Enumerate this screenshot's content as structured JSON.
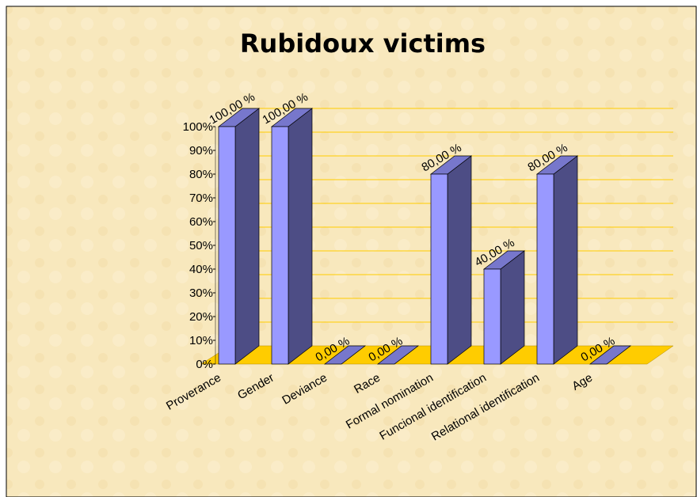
{
  "chart_data": {
    "type": "bar3d",
    "title": "Rubidoux victims",
    "categories": [
      "Proverance",
      "Gender",
      "Deviance",
      "Race",
      "Formal nomination",
      "Funcional identification",
      "Relational identification",
      "Age"
    ],
    "values": [
      100,
      100,
      0,
      0,
      80,
      40,
      80,
      0
    ],
    "value_labels": [
      "100,00 %",
      "100,00 %",
      "0,00 %",
      "0,00 %",
      "80,00 %",
      "40,00 %",
      "80,00 %",
      "0,00 %"
    ],
    "color": "#9999ff",
    "side_color": "#4d4d85",
    "top_color": "#7777cc",
    "floor_color": "#ffcc00",
    "ylim": [
      0,
      100
    ],
    "yticks": [
      {
        "value": 0,
        "label": "0%"
      },
      {
        "value": 10,
        "label": "10%"
      },
      {
        "value": 20,
        "label": "20%"
      },
      {
        "value": 30,
        "label": "30%"
      },
      {
        "value": 40,
        "label": "40%"
      },
      {
        "value": 50,
        "label": "50%"
      },
      {
        "value": 60,
        "label": "60%"
      },
      {
        "value": 70,
        "label": "70%"
      },
      {
        "value": 80,
        "label": "80%"
      },
      {
        "value": 90,
        "label": "90%"
      },
      {
        "value": 100,
        "label": "100%"
      }
    ],
    "grid": true
  }
}
